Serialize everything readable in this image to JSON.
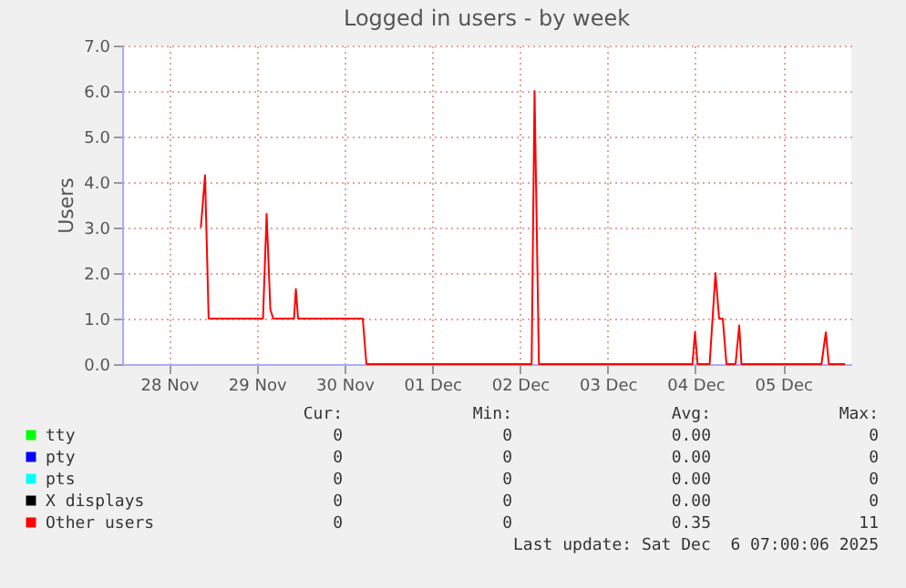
{
  "chart_data": {
    "type": "line",
    "title": "Logged in users - by week",
    "ylabel": "Users",
    "xlim": [
      "2025-11-27T23:10",
      "2025-12-06T06:40"
    ],
    "xticks": [
      {
        "value": "2025-11-28T12:00",
        "label": "28 Nov"
      },
      {
        "value": "2025-11-29T12:00",
        "label": "29 Nov"
      },
      {
        "value": "2025-11-30T12:00",
        "label": "30 Nov"
      },
      {
        "value": "2025-12-01T12:00",
        "label": "01 Dec"
      },
      {
        "value": "2025-12-02T12:00",
        "label": "02 Dec"
      },
      {
        "value": "2025-12-03T12:00",
        "label": "03 Dec"
      },
      {
        "value": "2025-12-04T12:00",
        "label": "04 Dec"
      },
      {
        "value": "2025-12-05T12:00",
        "label": "05 Dec"
      }
    ],
    "ylim": [
      0,
      7
    ],
    "yticks": [
      {
        "value": 0,
        "label": "0.0"
      },
      {
        "value": 1,
        "label": "1.0"
      },
      {
        "value": 2,
        "label": "2.0"
      },
      {
        "value": 3,
        "label": "3.0"
      },
      {
        "value": 4,
        "label": "4.0"
      },
      {
        "value": 5,
        "label": "5.0"
      },
      {
        "value": 6,
        "label": "6.0"
      },
      {
        "value": 7,
        "label": "7.0"
      }
    ],
    "grid": true,
    "legend": "bottom left",
    "series": [
      {
        "name": "tty",
        "color": "#00ff00"
      },
      {
        "name": "pty",
        "color": "#0000ff"
      },
      {
        "name": "pts",
        "color": "#00ffff"
      },
      {
        "name": "X displays",
        "color": "#000000"
      },
      {
        "name": "Other users",
        "color": "#ff0000",
        "x": [
          "2025-11-28T20:42",
          "2025-11-28T21:51",
          "2025-11-28T22:50",
          "2025-11-29T13:42",
          "2025-11-29T14:42",
          "2025-11-29T15:43",
          "2025-11-29T16:30",
          "2025-11-29T22:12",
          "2025-11-29T22:42",
          "2025-11-29T23:18",
          "2025-11-30T17:00",
          "2025-11-30T18:00",
          "2025-12-02T15:12",
          "2025-12-02T16:00",
          "2025-12-02T17:12",
          "2025-12-04T11:12",
          "2025-12-04T11:54",
          "2025-12-04T12:36",
          "2025-12-04T15:54",
          "2025-12-04T17:30",
          "2025-12-04T18:30",
          "2025-12-04T19:30",
          "2025-12-04T20:30",
          "2025-12-04T23:00",
          "2025-12-05T00:00",
          "2025-12-05T00:36",
          "2025-12-05T22:30",
          "2025-12-05T23:42",
          "2025-12-06T00:30",
          "2025-12-06T05:00"
        ],
        "values": [
          3.0,
          4.15,
          1.0,
          1.0,
          3.3,
          1.2,
          1.0,
          1.0,
          1.65,
          1.0,
          1.0,
          0,
          0,
          6.0,
          0,
          0,
          0.7,
          0,
          0,
          2.0,
          1.0,
          1.0,
          0,
          0,
          0.85,
          0,
          0,
          0.7,
          0,
          0
        ]
      }
    ],
    "annotations": [
      "Cur:",
      "Min:",
      "Avg:",
      "Max:",
      "0",
      "0",
      "0.00",
      "0",
      "0",
      "0",
      "0.00",
      "0",
      "0",
      "0",
      "0.00",
      "0",
      "0",
      "0",
      "0.00",
      "0",
      "0",
      "0",
      "0.35",
      "11",
      "Last update: Sat Dec  6 07:00:06 2025"
    ]
  }
}
